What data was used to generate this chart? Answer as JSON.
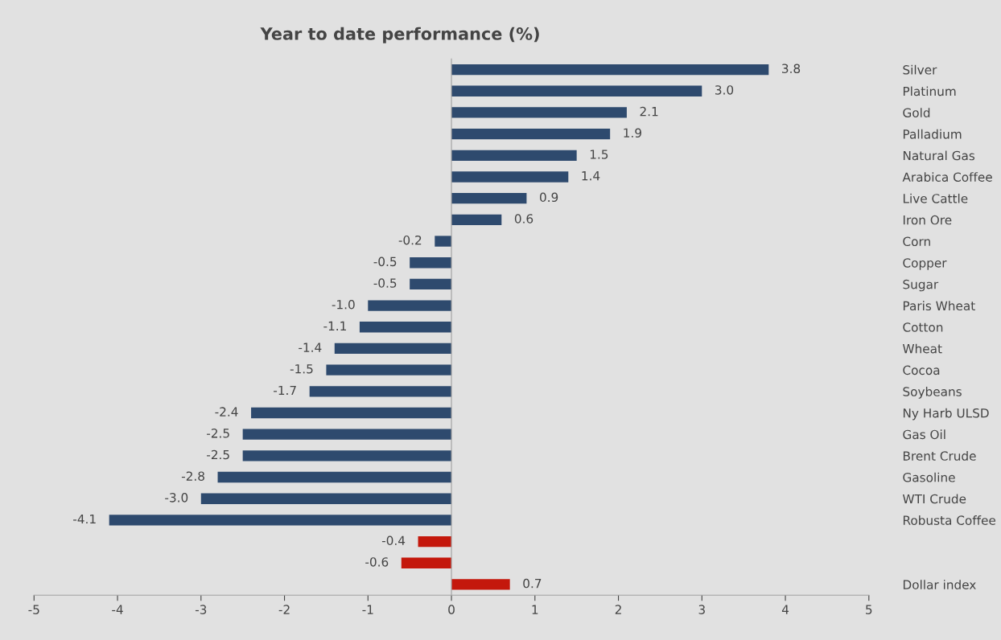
{
  "chart_data": {
    "type": "bar",
    "orientation": "horizontal",
    "title": "Year to date performance (%)",
    "categories": [
      "Silver",
      "Platinum",
      "Gold",
      "Palladium",
      "Natural Gas",
      "Arabica Coffee",
      "Live Cattle",
      "Iron Ore",
      "Corn",
      "Copper",
      "Sugar",
      "Paris Wheat",
      "Cotton",
      "Wheat",
      "Cocoa",
      "Soybeans",
      "Ny Harb ULSD",
      "Gas Oil",
      "Brent Crude",
      "Gasoline",
      "WTI Crude",
      "Robusta Coffee",
      null,
      null,
      "Dollar index"
    ],
    "values": [
      3.8,
      3.0,
      2.1,
      1.9,
      1.5,
      1.4,
      0.9,
      0.6,
      -0.2,
      -0.5,
      -0.5,
      -1.0,
      -1.1,
      -1.4,
      -1.5,
      -1.7,
      -2.4,
      -2.5,
      -2.5,
      -2.8,
      -3.0,
      -4.1,
      -0.4,
      -0.6,
      0.7
    ],
    "value_labels": [
      "3.8",
      "3.0",
      "2.1",
      "1.9",
      "1.5",
      "1.4",
      "0.9",
      "0.6",
      "-0.2",
      "-0.5",
      "-0.5",
      "-1.0",
      "-1.1",
      "-1.4",
      "-1.5",
      "-1.7",
      "-2.4",
      "-2.5",
      "-2.5",
      "-2.8",
      "-3.0",
      "-4.1",
      "-0.4",
      "-0.6",
      "0.7"
    ],
    "colors": [
      "#2e4a6e",
      "#2e4a6e",
      "#2e4a6e",
      "#2e4a6e",
      "#2e4a6e",
      "#2e4a6e",
      "#2e4a6e",
      "#2e4a6e",
      "#2e4a6e",
      "#2e4a6e",
      "#2e4a6e",
      "#2e4a6e",
      "#2e4a6e",
      "#2e4a6e",
      "#2e4a6e",
      "#2e4a6e",
      "#2e4a6e",
      "#2e4a6e",
      "#2e4a6e",
      "#2e4a6e",
      "#2e4a6e",
      "#2e4a6e",
      "#c4180c",
      "#c4180c",
      "#c4180c"
    ],
    "xlim": [
      -5,
      5
    ],
    "xticks": [
      -5,
      -4,
      -3,
      -2,
      -1,
      0,
      1,
      2,
      3,
      4,
      5
    ]
  }
}
